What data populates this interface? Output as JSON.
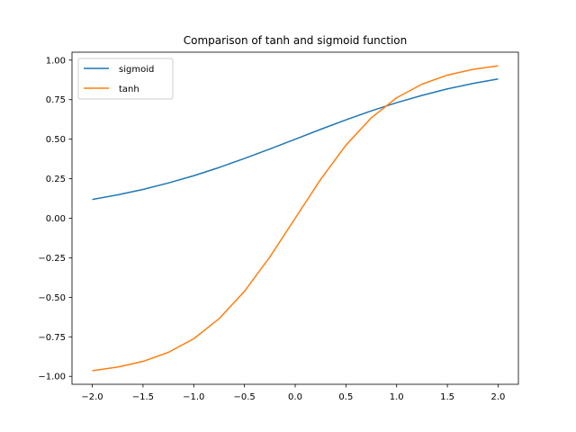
{
  "chart_data": {
    "type": "line",
    "title": "Comparison of tanh and sigmoid function",
    "xlabel": "",
    "ylabel": "",
    "xlim": [
      -2.2,
      2.2
    ],
    "ylim": [
      -1.05,
      1.05
    ],
    "xticks": [
      -2.0,
      -1.5,
      -1.0,
      -0.5,
      0.0,
      0.5,
      1.0,
      1.5,
      2.0
    ],
    "xtick_labels": [
      "−2.0",
      "−1.5",
      "−1.0",
      "−0.5",
      "0.0",
      "0.5",
      "1.0",
      "1.5",
      "2.0"
    ],
    "yticks": [
      -1.0,
      -0.75,
      -0.5,
      -0.25,
      0.0,
      0.25,
      0.5,
      0.75,
      1.0
    ],
    "ytick_labels": [
      "−1.00",
      "−0.75",
      "−0.50",
      "−0.25",
      "0.00",
      "0.25",
      "0.50",
      "0.75",
      "1.00"
    ],
    "grid": false,
    "legend_position": "upper left",
    "x": [
      -2.0,
      -1.75,
      -1.5,
      -1.25,
      -1.0,
      -0.75,
      -0.5,
      -0.25,
      0.0,
      0.25,
      0.5,
      0.75,
      1.0,
      1.25,
      1.5,
      1.75,
      2.0
    ],
    "series": [
      {
        "name": "sigmoid",
        "color": "#1f77b4",
        "values": [
          0.119,
          0.148,
          0.182,
          0.223,
          0.269,
          0.321,
          0.378,
          0.438,
          0.5,
          0.562,
          0.622,
          0.679,
          0.731,
          0.777,
          0.818,
          0.852,
          0.881
        ]
      },
      {
        "name": "tanh",
        "color": "#ff7f0e",
        "values": [
          -0.964,
          -0.941,
          -0.905,
          -0.848,
          -0.762,
          -0.635,
          -0.462,
          -0.245,
          0.0,
          0.245,
          0.462,
          0.635,
          0.762,
          0.848,
          0.905,
          0.941,
          0.964
        ]
      }
    ]
  }
}
